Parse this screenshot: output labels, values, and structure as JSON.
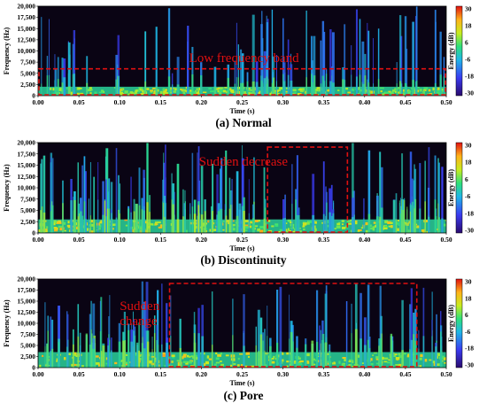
{
  "chart_data": [
    {
      "type": "heatmap",
      "subtitle": "(a) Normal",
      "xlabel": "Time (s)",
      "ylabel": "Frequency (Hz)",
      "xlim": [
        0,
        0.5
      ],
      "ylim": [
        0,
        20000
      ],
      "x_ticks": [
        "0.00",
        "0.05",
        "0.10",
        "0.15",
        "0.20",
        "0.25",
        "0.30",
        "0.35",
        "0.40",
        "0.45",
        "0.50"
      ],
      "y_ticks": [
        "0",
        "2,500",
        "5,000",
        "7,500",
        "10,000",
        "12,500",
        "15,000",
        "17,500",
        "20,000"
      ],
      "colorbar": {
        "label": "Energy (dB)",
        "ticks": [
          "30",
          "18",
          "6",
          "-6",
          "-18",
          "-30"
        ],
        "range": [
          -30,
          30
        ]
      },
      "annotations": [
        {
          "text": "Low frequency band",
          "region_time_s": [
            0.0,
            0.5
          ],
          "region_freq_hz": [
            0,
            6000
          ]
        }
      ],
      "seed": 11,
      "low_band_hz": 2000,
      "columns": [
        {
          "t0": 0.0,
          "t1": 0.5,
          "burst_density": 0.55,
          "burst_intensity": 0.55
        }
      ]
    },
    {
      "type": "heatmap",
      "subtitle": "(b) Discontinuity",
      "xlabel": "Time (s)",
      "ylabel": "Frequency (Hz)",
      "xlim": [
        0,
        0.5
      ],
      "ylim": [
        0,
        20000
      ],
      "x_ticks": [
        "0.00",
        "0.05",
        "0.10",
        "0.15",
        "0.20",
        "0.25",
        "0.30",
        "0.35",
        "0.40",
        "0.45",
        "0.50"
      ],
      "y_ticks": [
        "0",
        "2,500",
        "5,000",
        "7,500",
        "10,000",
        "12,500",
        "15,000",
        "17,500",
        "20,000"
      ],
      "colorbar": {
        "label": "Energy (dB)",
        "ticks": [
          "30",
          "18",
          "6",
          "-6",
          "-18",
          "-30"
        ],
        "range": [
          -30,
          30
        ]
      },
      "annotations": [
        {
          "text": "Sudden decrease",
          "region_time_s": [
            0.28,
            0.38
          ],
          "region_freq_hz": [
            0,
            19000
          ]
        }
      ],
      "seed": 23,
      "low_band_hz": 3000,
      "columns": [
        {
          "t0": 0.0,
          "t1": 0.28,
          "burst_density": 0.95,
          "burst_intensity": 0.8
        },
        {
          "t0": 0.28,
          "t1": 0.38,
          "burst_density": 0.4,
          "burst_intensity": 0.45
        },
        {
          "t0": 0.38,
          "t1": 0.5,
          "burst_density": 0.85,
          "burst_intensity": 0.7
        }
      ]
    },
    {
      "type": "heatmap",
      "subtitle": "(c) Pore",
      "xlabel": "Time (s)",
      "ylabel": "Frequency (Hz)",
      "xlim": [
        0,
        0.5
      ],
      "ylim": [
        0,
        20000
      ],
      "x_ticks": [
        "0.00",
        "0.05",
        "0.10",
        "0.15",
        "0.20",
        "0.25",
        "0.30",
        "0.35",
        "0.40",
        "0.45",
        "0.50"
      ],
      "y_ticks": [
        "0",
        "2,500",
        "5,000",
        "7,500",
        "10,000",
        "12,500",
        "15,000",
        "17,500",
        "20,000"
      ],
      "colorbar": {
        "label": "Energy (dB)",
        "ticks": [
          "30",
          "18",
          "6",
          "-6",
          "-18",
          "-30"
        ],
        "range": [
          -30,
          30
        ]
      },
      "annotations": [
        {
          "text": "Sudden\nchange",
          "region_time_s": [
            0.16,
            0.465
          ],
          "region_freq_hz": [
            0,
            19000
          ]
        }
      ],
      "seed": 37,
      "low_band_hz": 3500,
      "columns": [
        {
          "t0": 0.0,
          "t1": 0.16,
          "burst_density": 0.95,
          "burst_intensity": 0.8
        },
        {
          "t0": 0.16,
          "t1": 0.465,
          "burst_density": 0.5,
          "burst_intensity": 0.65
        },
        {
          "t0": 0.465,
          "t1": 0.5,
          "burst_density": 0.85,
          "burst_intensity": 0.7
        }
      ]
    }
  ]
}
